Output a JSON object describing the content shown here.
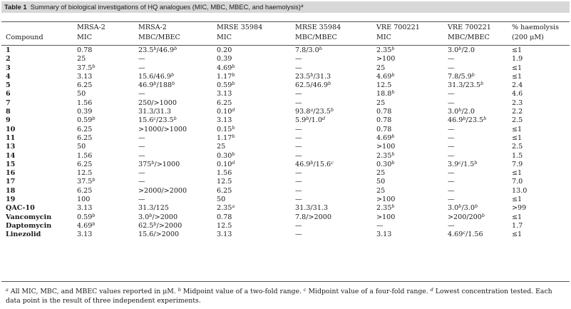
{
  "caption": {
    "label": "Table 1",
    "text": "Summary of biological investigations of HQ analogues (MIC, MBC, MBEC, and haemolysis)",
    "note": "a"
  },
  "columns": [
    [
      "",
      "Compound"
    ],
    [
      "MRSA-2",
      "MIC"
    ],
    [
      "MRSA-2",
      "MBC/MBEC"
    ],
    [
      "MRSE 35984",
      "MIC"
    ],
    [
      "MRSE 35984",
      "MBC/MBEC"
    ],
    [
      "VRE 700221",
      "MIC"
    ],
    [
      "VRE 700221",
      "MBC/MBEC"
    ],
    [
      "% haemolysis",
      "(200 μM)"
    ]
  ],
  "rows": [
    {
      "compound": "1",
      "cells": [
        "0.78",
        "23.5^b/46.9^b",
        "0.20",
        "7.8/3.0^b",
        "2.35^b",
        "3.0^b/2.0",
        "≤1"
      ]
    },
    {
      "compound": "2",
      "cells": [
        "25",
        "—",
        "0.39",
        "—",
        ">100",
        "—",
        "1.9"
      ]
    },
    {
      "compound": "3",
      "cells": [
        "37.5^b",
        "—",
        "4.69^b",
        "—",
        "25",
        "—",
        "≤1"
      ]
    },
    {
      "compound": "4",
      "cells": [
        "3.13",
        "15.6/46.9^b",
        "1.17^b",
        "23.5^b/31.3",
        "4.69^b",
        "7.8/5.9^b",
        "≤1"
      ]
    },
    {
      "compound": "5",
      "cells": [
        "6.25",
        "46.9^b/188^b",
        "0.59^b",
        "62.5/46.9^b",
        "12.5",
        "31.3/23.5^b",
        "2.4"
      ]
    },
    {
      "compound": "6",
      "cells": [
        "50",
        "—",
        "3.13",
        "—",
        "18.8^b",
        "—",
        "4.6"
      ]
    },
    {
      "compound": "7",
      "cells": [
        "1.56",
        "250/>1000",
        "6.25",
        "—",
        "25",
        "—",
        "2.3"
      ]
    },
    {
      "compound": "8",
      "cells": [
        "0.39",
        "31.3/31.3",
        "0.10^d",
        "93.8^a/23.5^b",
        "0.78",
        "3.0^b/2.0",
        "2.2"
      ]
    },
    {
      "compound": "9",
      "cells": [
        "0.59^b",
        "15.6^c/23.5^b",
        "3.13",
        "5.9^b/1.0^d",
        "0.78",
        "46.9^b/23.5^b",
        "2.5"
      ]
    },
    {
      "compound": "10",
      "cells": [
        "6.25",
        ">1000/>1000",
        "0.15^b",
        "—",
        "0.78",
        "—",
        "≤1"
      ]
    },
    {
      "compound": "11",
      "cells": [
        "6.25",
        "—",
        "1.17^b",
        "—",
        "4.69^b",
        "—",
        "≤1"
      ]
    },
    {
      "compound": "13",
      "cells": [
        "50",
        "—",
        "25",
        "—",
        ">100",
        "—",
        "2.5"
      ]
    },
    {
      "compound": "14",
      "cells": [
        "1.56",
        "—",
        "0.30^b",
        "—",
        "2.35^b",
        "—",
        "1.5"
      ]
    },
    {
      "compound": "15",
      "cells": [
        "6.25",
        "375^b/>1000",
        "0.10^d",
        "46.9^b/15.6^c",
        "0.30^b",
        "3.9^c/1.5^b",
        "7.9"
      ]
    },
    {
      "compound": "16",
      "cells": [
        "12.5",
        "—",
        "1.56",
        "—",
        "25",
        "—",
        "≤1"
      ]
    },
    {
      "compound": "17",
      "cells": [
        "37.5^b",
        "—",
        "12.5",
        "—",
        "50",
        "—",
        "7.0"
      ]
    },
    {
      "compound": "18",
      "cells": [
        "6.25",
        ">2000/>2000",
        "6.25",
        "—",
        "25",
        "—",
        "13.0"
      ]
    },
    {
      "compound": "19",
      "cells": [
        "100",
        "—",
        "50",
        "—",
        ">100",
        "—",
        "≤1"
      ]
    },
    {
      "compound": "QAC-10",
      "cells": [
        "3.13",
        "31.3/125",
        "2.35^a",
        "31.3/31.3",
        "2.35^b",
        "3.0^b/3.0^b",
        ">99"
      ]
    },
    {
      "compound": "Vancomycin",
      "cells": [
        "0.59^b",
        "3.0^b/>2000",
        "0.78",
        "7.8/>2000",
        ">100",
        ">200/200^b",
        "≤1"
      ]
    },
    {
      "compound": "Daptomycin",
      "cells": [
        "4.69^b",
        "62.5^b/>2000",
        "12.5",
        "—",
        "—",
        "—",
        "1.7"
      ]
    },
    {
      "compound": "Linezolid",
      "cells": [
        "3.13",
        "15.6/>2000",
        "3.13",
        "—",
        "3.13",
        "4.69^c/1.56",
        "≤1"
      ]
    }
  ],
  "footnotes": {
    "a": {
      "mark": "a",
      "text": "All MIC, MBC, and MBEC values reported in μM."
    },
    "b": {
      "mark": "b",
      "text": "Midpoint value of a two-fold range."
    },
    "c": {
      "mark": "c",
      "text": "Midpoint value of a four-fold range."
    },
    "d": {
      "mark": "d",
      "text": "Lowest concentration tested. Each data point is the result of three independent experiments."
    }
  }
}
